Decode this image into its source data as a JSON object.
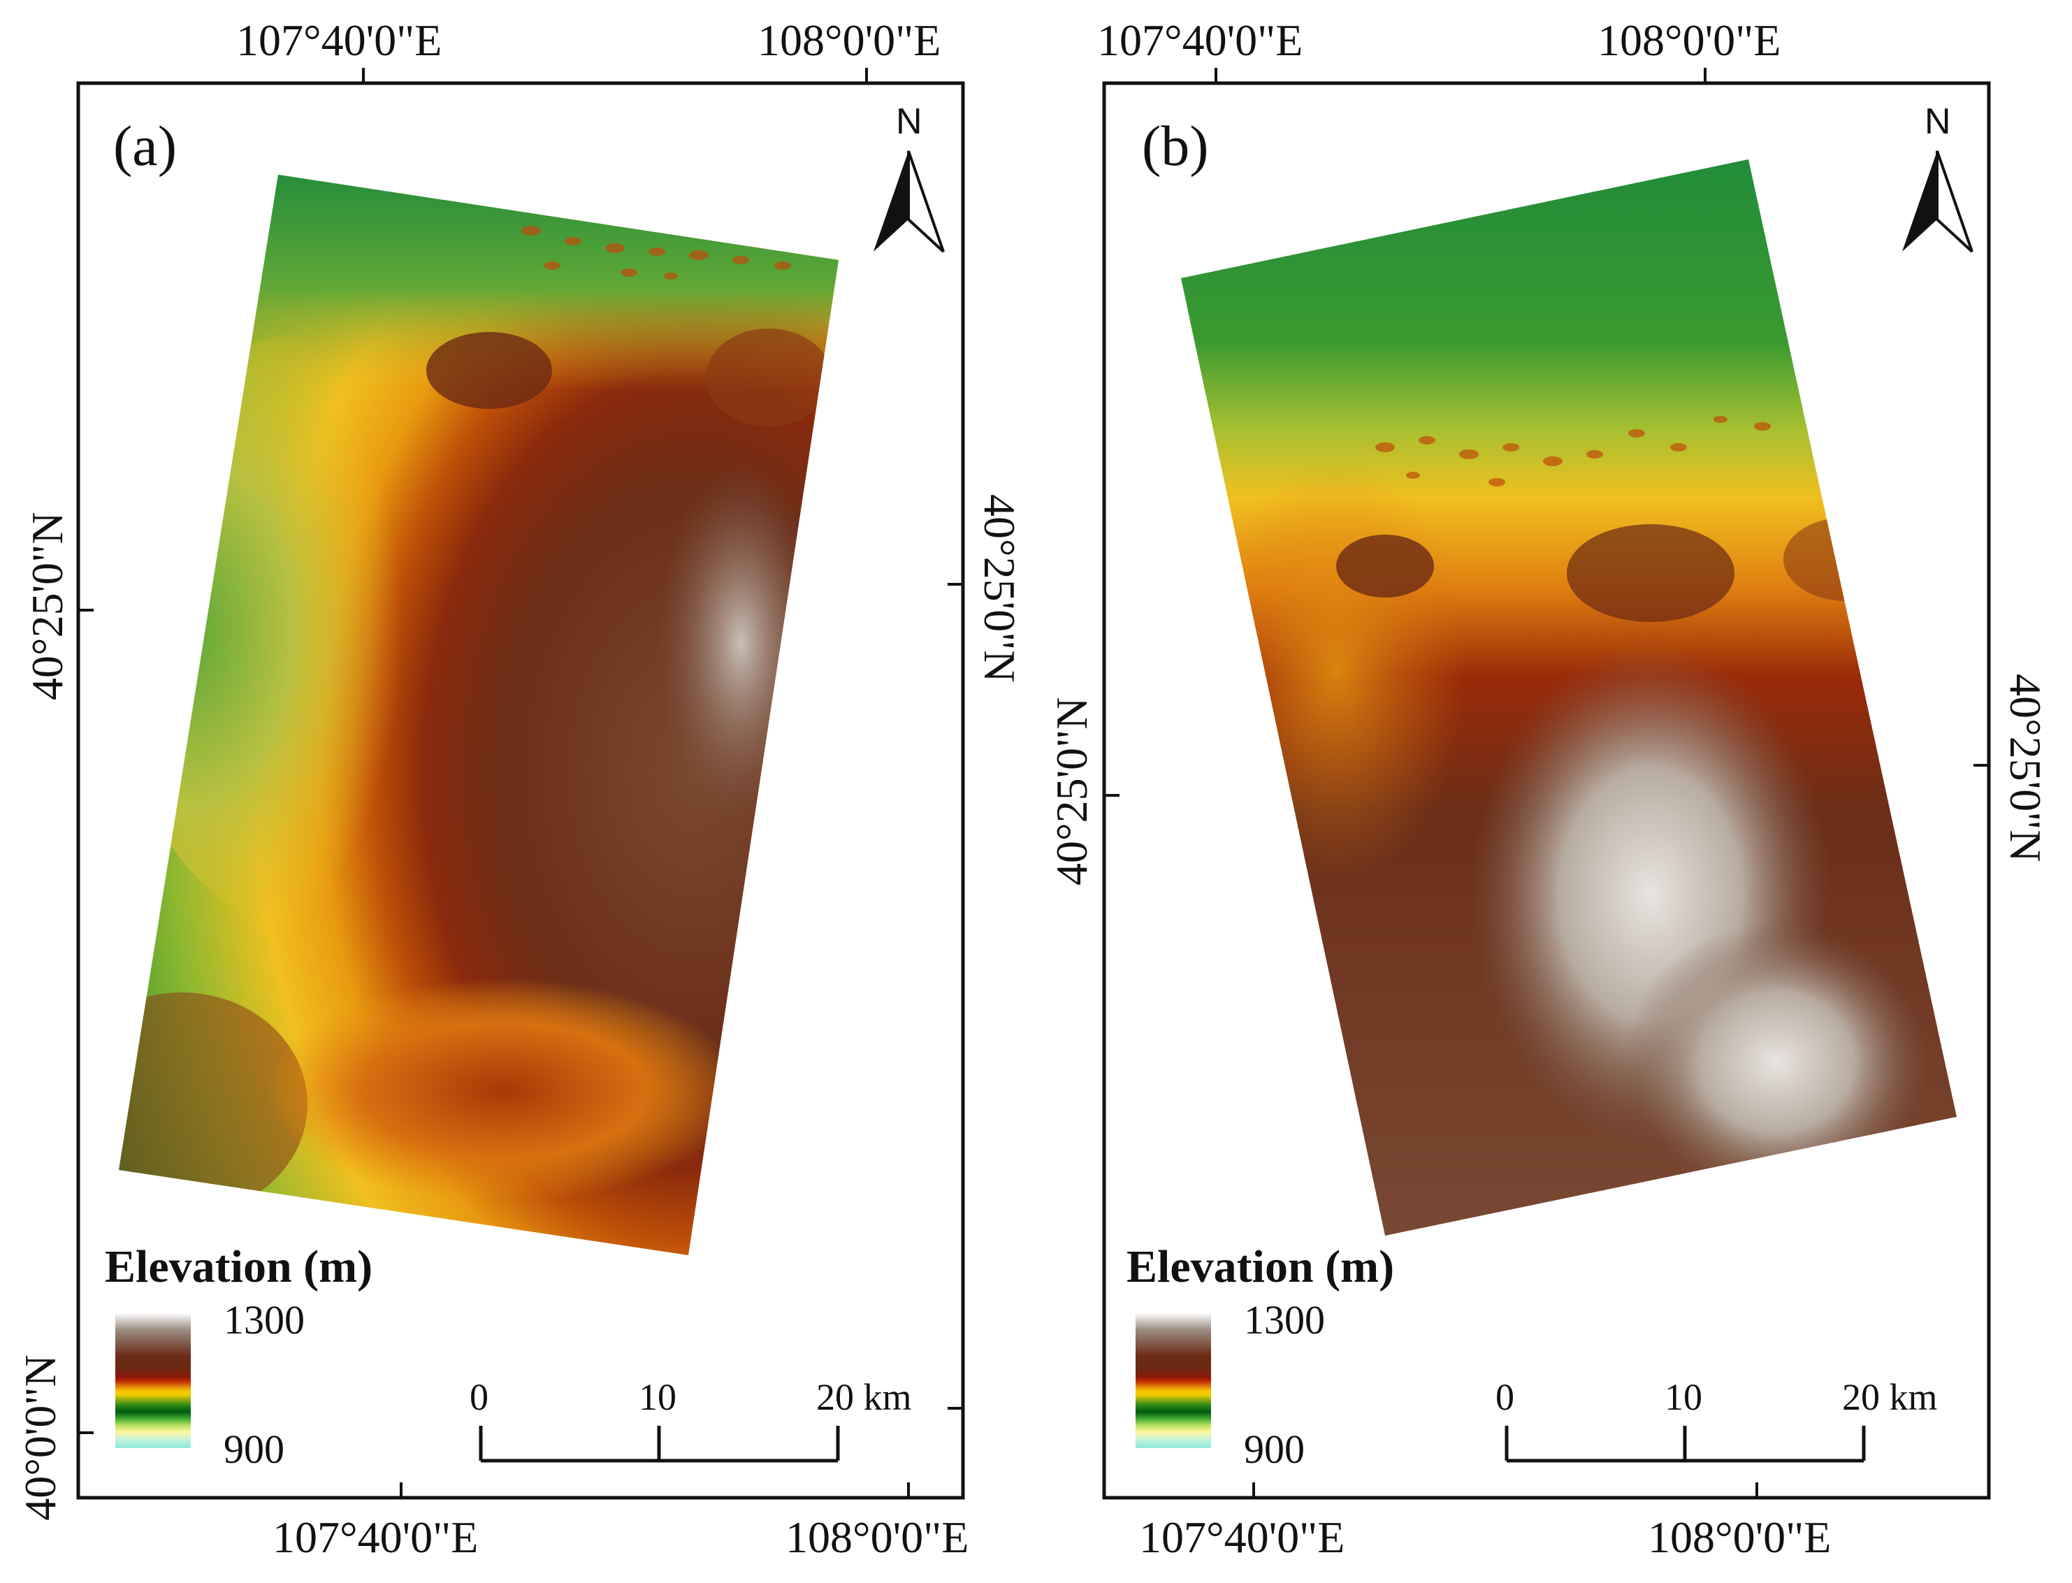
{
  "panels": {
    "a": {
      "label": "(a)",
      "top_ticks": [
        "107°40'0\"E",
        "108°0'0\"E"
      ],
      "bottom_ticks": [
        "107°40'0\"E",
        "108°0'0\"E"
      ],
      "left_ticks": [
        "40°25'0\"N",
        "40°0'0\"N"
      ],
      "right_ticks": [
        "40°25'0\"N"
      ]
    },
    "b": {
      "label": "(b)",
      "top_ticks": [
        "107°40'0\"E",
        "108°0'0\"E"
      ],
      "bottom_ticks": [
        "107°40'0\"E",
        "108°0'0\"E"
      ],
      "left_ticks": [
        "40°25'0\"N"
      ],
      "right_ticks": [
        "40°25'0\"N"
      ]
    }
  },
  "north_arrow": {
    "letter": "N"
  },
  "legend": {
    "title": "Elevation (m)",
    "max": "1300",
    "min": "900"
  },
  "scale_bar": {
    "ticks": [
      "0",
      "10",
      "20 km"
    ]
  },
  "colors": {
    "low": "#8fe8d8",
    "green": "#2a8a18",
    "yellow": "#f5c000",
    "orange": "#d86a00",
    "brown": "#6b2a14",
    "high": "#f0f0f0"
  }
}
